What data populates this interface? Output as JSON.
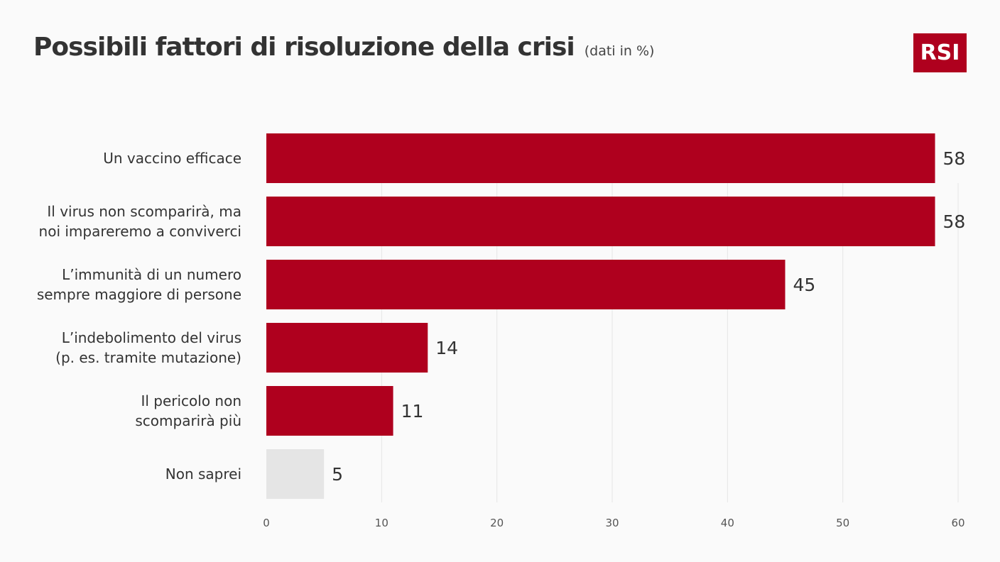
{
  "header": {
    "title": "Possibili fattori di risoluzione della crisi",
    "subtitle": "(dati in %)"
  },
  "logo": {
    "text": "RSI"
  },
  "colors": {
    "accent": "#af001e",
    "neutral": "#e5e5e5",
    "grid": "#e6e6e6"
  },
  "chart_data": {
    "type": "bar",
    "orientation": "horizontal",
    "categories": [
      [
        "Un vaccino efficace"
      ],
      [
        "Il virus non scomparirà, ma",
        "noi impareremo a conviverci"
      ],
      [
        "L’immunità di un numero",
        "sempre maggiore di persone"
      ],
      [
        "L’indebolimento del virus",
        "(p. es. tramite mutazione)"
      ],
      [
        "Il pericolo non",
        "scomparirà più"
      ],
      [
        "Non saprei"
      ]
    ],
    "values": [
      58,
      58,
      45,
      14,
      11,
      5
    ],
    "value_labels": [
      "58",
      "58",
      "45",
      "14",
      "11",
      "5"
    ],
    "bar_colors": [
      "#af001e",
      "#af001e",
      "#af001e",
      "#af001e",
      "#af001e",
      "#e5e5e5"
    ],
    "xlim": [
      0,
      60
    ],
    "xticks": [
      0,
      10,
      20,
      30,
      40,
      50,
      60
    ],
    "grid": true,
    "xlabel": "",
    "ylabel": ""
  }
}
